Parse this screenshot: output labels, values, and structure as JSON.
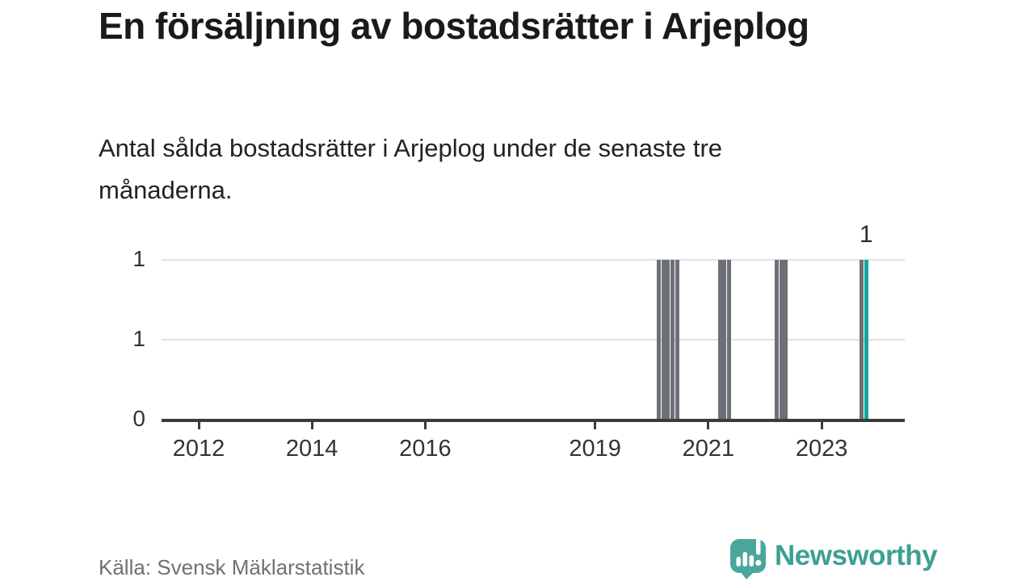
{
  "title": "En försäljning av bostadsrätter i Arjeplog",
  "subtitle": "Antal sålda bostadsrätter i Arjeplog under de senaste tre månaderna.",
  "source": "Källa: Svensk Mäklarstatistik",
  "brand": {
    "name": "Newsworthy",
    "logo_icon": "newsworthy-pin-barchart-icon",
    "text_color": "#3da093",
    "mark_color": "#4aa69b"
  },
  "colors": {
    "bar_default": "#6d7077",
    "bar_highlight": "#13a59e",
    "grid": "#e1e1e1",
    "axis": "#3b3b3b",
    "tick_text": "#333333",
    "value_label": "#2b2b2b"
  },
  "chart_data": {
    "type": "bar",
    "title": "En försäljning av bostadsrätter i Arjeplog",
    "subtitle": "Antal sålda bostadsrätter i Arjeplog under de senaste tre månaderna.",
    "xlabel": "",
    "ylabel": "",
    "x_axis": {
      "tick_labels": [
        "2012",
        "2014",
        "2016",
        "2019",
        "2021",
        "2023"
      ],
      "tick_years": [
        2012,
        2014,
        2016,
        2019,
        2021,
        2023
      ],
      "range_years": [
        2011.35,
        2024.45
      ],
      "grid": false
    },
    "y_axis": {
      "tick_labels": [
        "1",
        "1",
        "0"
      ],
      "tick_values": [
        1,
        0.5,
        0
      ],
      "grid_values": [
        1,
        0.5
      ],
      "range": [
        0,
        1
      ],
      "grid": true
    },
    "legend": "none",
    "bars": [
      {
        "month": "2020-02",
        "value": 1,
        "highlight": false
      },
      {
        "month": "2020-03",
        "value": 1,
        "highlight": false
      },
      {
        "month": "2020-04",
        "value": 1,
        "highlight": false
      },
      {
        "month": "2020-05",
        "value": 1,
        "highlight": false
      },
      {
        "month": "2020-06",
        "value": 1,
        "highlight": false
      },
      {
        "month": "2021-03",
        "value": 1,
        "highlight": false
      },
      {
        "month": "2021-04",
        "value": 1,
        "highlight": false
      },
      {
        "month": "2021-05",
        "value": 1,
        "highlight": false
      },
      {
        "month": "2022-03",
        "value": 1,
        "highlight": false
      },
      {
        "month": "2022-04",
        "value": 1,
        "highlight": false
      },
      {
        "month": "2022-05",
        "value": 1,
        "highlight": false
      },
      {
        "month": "2023-09",
        "value": 1,
        "highlight": false
      },
      {
        "month": "2023-10",
        "value": 1,
        "highlight": true
      }
    ],
    "annotation": {
      "text": "1",
      "month": "2023-10"
    }
  }
}
